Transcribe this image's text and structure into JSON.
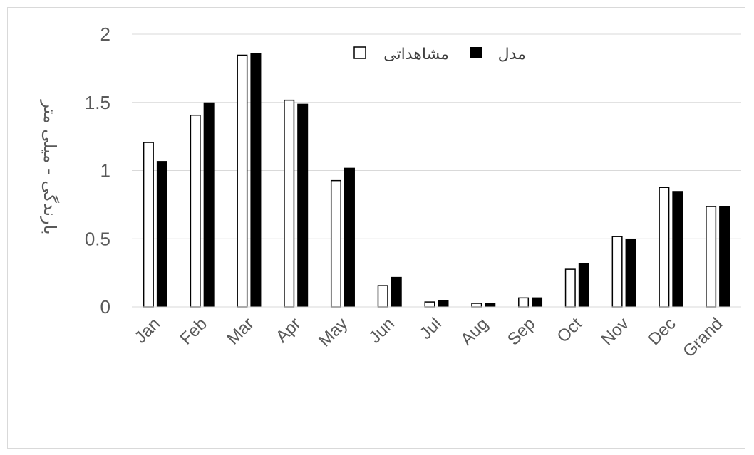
{
  "chart_data": {
    "type": "bar",
    "categories": [
      "Jan",
      "Feb",
      "Mar",
      "Apr",
      "May",
      "Jun",
      "Jul",
      "Aug",
      "Sep",
      "Oct",
      "Nov",
      "Dec",
      "Grand"
    ],
    "series": [
      {
        "name": "مشاهداتی",
        "color": "#ffffff",
        "values": [
          1.21,
          1.41,
          1.85,
          1.52,
          0.93,
          0.16,
          0.04,
          0.03,
          0.07,
          0.28,
          0.52,
          0.88,
          0.74
        ]
      },
      {
        "name": "مدل",
        "color": "#000000",
        "values": [
          1.07,
          1.5,
          1.86,
          1.49,
          1.02,
          0.22,
          0.05,
          0.03,
          0.07,
          0.32,
          0.5,
          0.85,
          0.74
        ]
      }
    ],
    "yticks": [
      "0",
      "0.5",
      "1",
      "1.5",
      "2"
    ],
    "ylim": [
      0,
      2
    ],
    "ylabel": "بارندگی - میلی متر",
    "xlabel": "",
    "title": "",
    "grid": true,
    "legend_position": "top-center"
  }
}
